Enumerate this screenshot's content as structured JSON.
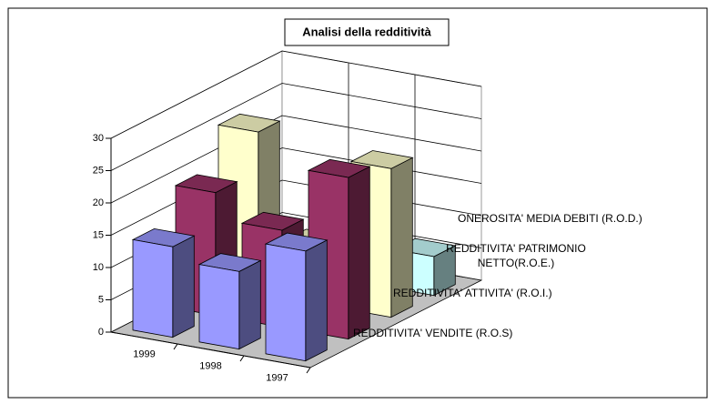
{
  "chart_data": {
    "type": "bar3d",
    "title": "Analisi della redditività",
    "categories": [
      "1999",
      "1998",
      "1997"
    ],
    "series": [
      {
        "name": "REDDITIVITA' VENDITE (R.O.S)",
        "color": "#9999ff",
        "values": [
          14,
          12,
          17
        ]
      },
      {
        "name": "REDDITIVITA' ATTIVITA' (R.O.I.)",
        "color": "#993366",
        "values": [
          19,
          15,
          25
        ]
      },
      {
        "name": "REDDITIVITA' PATRIMONIO NETTO(R.O.E.)",
        "color": "#ffffcc",
        "values": [
          25,
          9,
          23
        ]
      },
      {
        "name": "ONEROSITA' MEDIA DEBITI (R.O.D.)",
        "color": "#ccffff",
        "values": [
          4,
          3,
          6
        ]
      }
    ],
    "ylim": [
      0,
      30
    ],
    "yticks": [
      0,
      5,
      10,
      15,
      20,
      25,
      30
    ],
    "grid": true
  }
}
